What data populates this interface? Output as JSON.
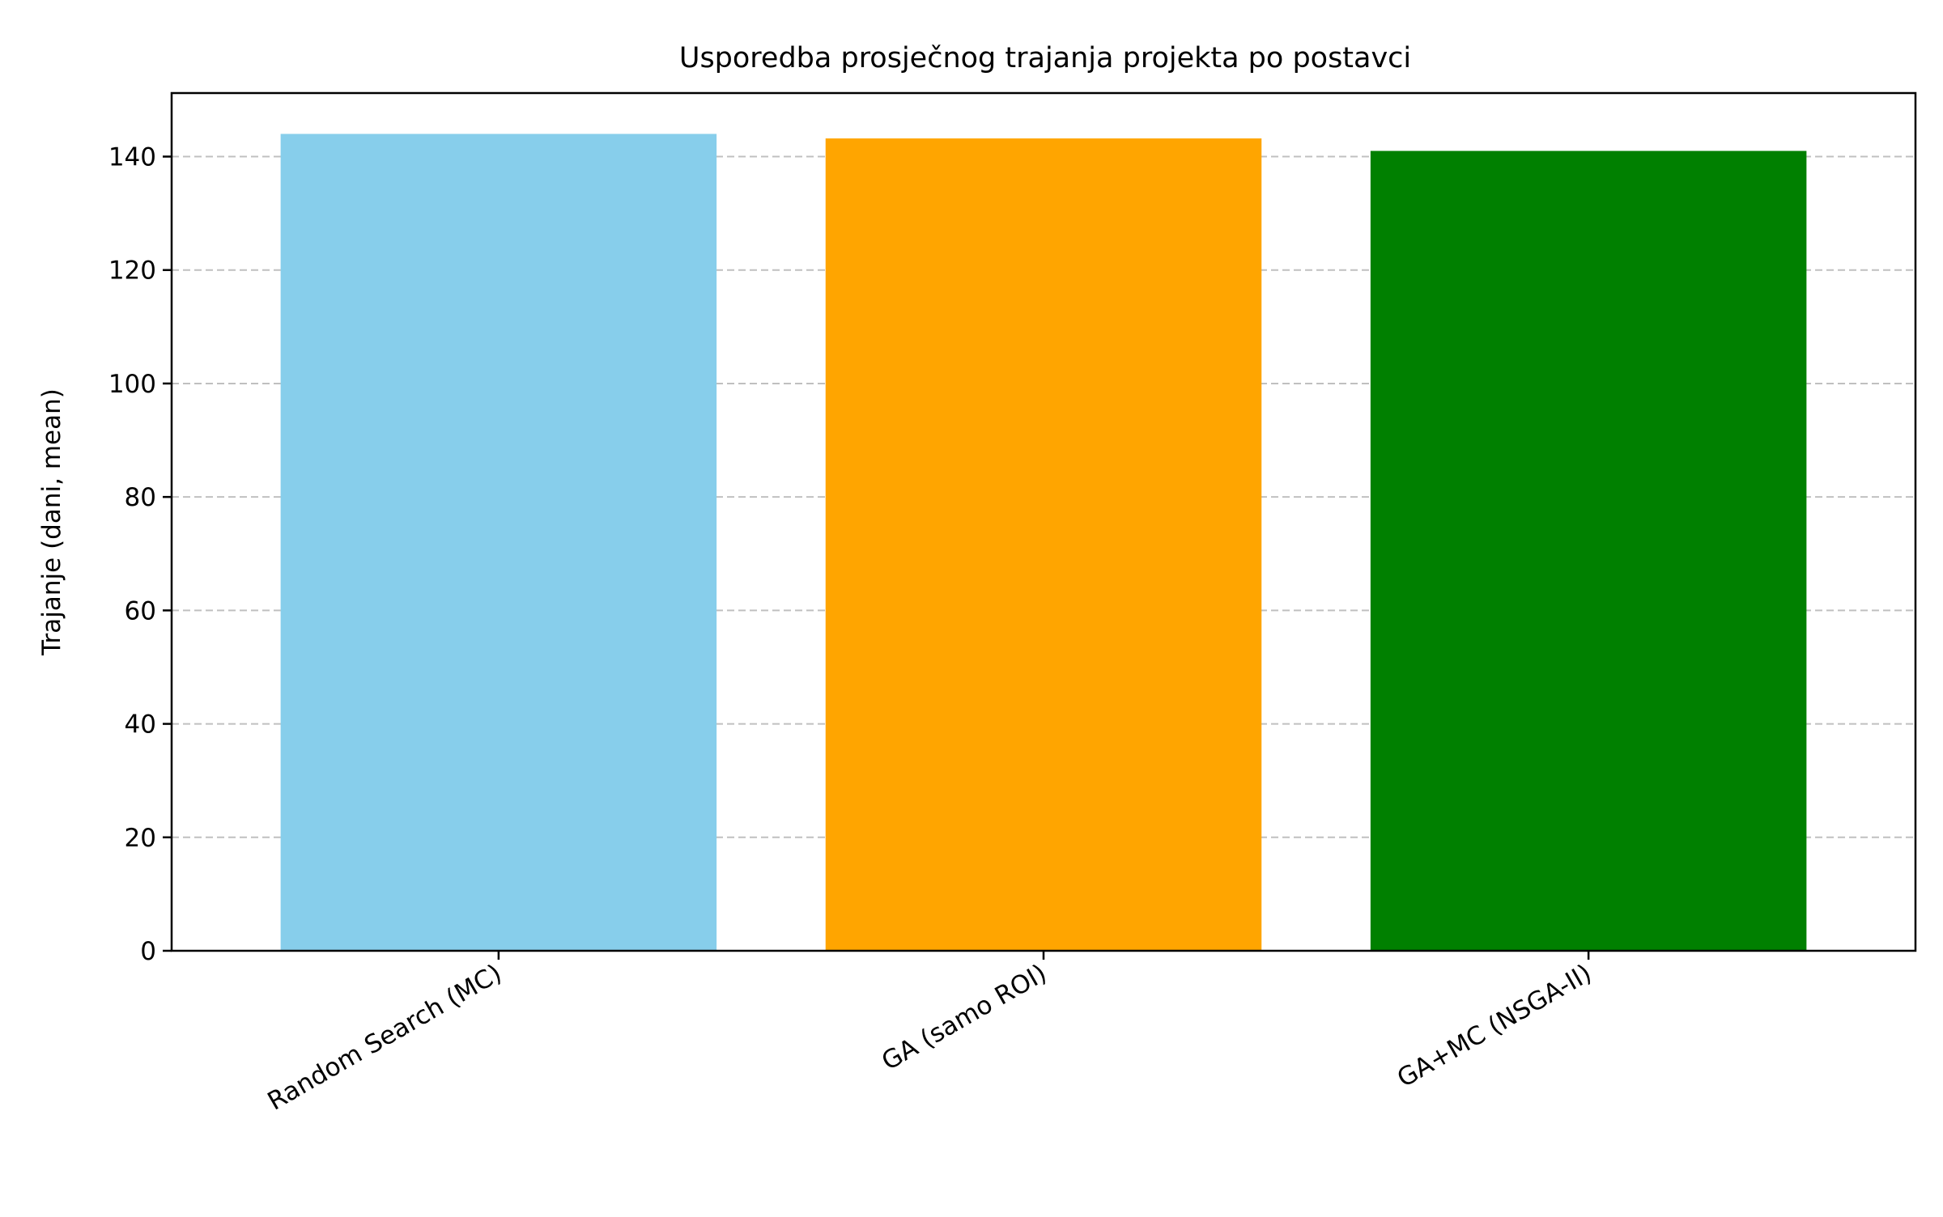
{
  "chart_data": {
    "type": "bar",
    "title": "Usporedba prosječnog trajanja projekta po postavci",
    "xlabel": "",
    "ylabel": "Trajanje (dani, mean)",
    "categories": [
      "Random Search (MC)",
      "GA (samo ROI)",
      "GA+MC (NSGA-II)"
    ],
    "values": [
      144.0,
      143.2,
      141.0
    ],
    "colors": [
      "#87CEEB",
      "#FFA500",
      "#008000"
    ],
    "ylim": [
      0,
      151.2
    ],
    "yticks": [
      0,
      20,
      40,
      60,
      80,
      100,
      120,
      140
    ],
    "ytick_labels": [
      "0",
      "20",
      "40",
      "60",
      "80",
      "100",
      "120",
      "140"
    ],
    "grid": {
      "axis": "y",
      "style": "dashed",
      "color": "#c0c0c0"
    },
    "legend": "none"
  }
}
